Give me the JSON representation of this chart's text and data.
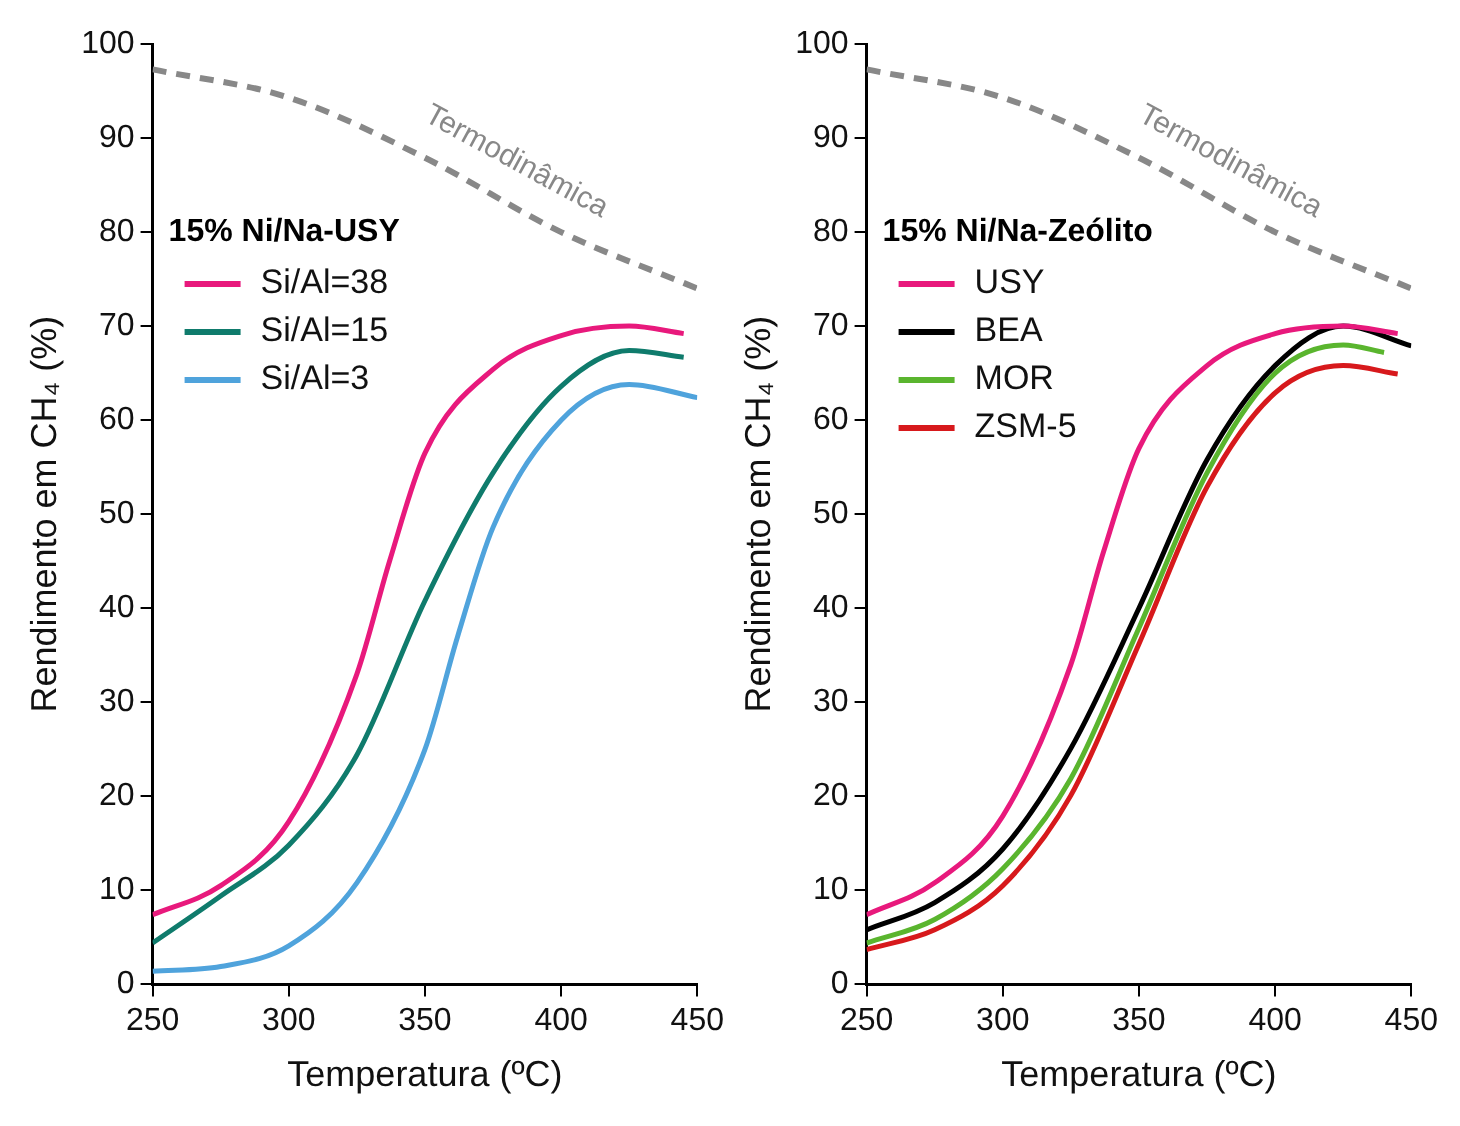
{
  "chart_data": [
    {
      "type": "line",
      "xlabel": "Temperatura (ºC)",
      "ylabel": "Rendimento em CH₄ (%)",
      "legend_title": "15% Ni/Na-USY",
      "legend": "top left",
      "grid": false,
      "xlim": [
        250,
        450
      ],
      "xticks": [
        250,
        300,
        350,
        400,
        450
      ],
      "ylim": [
        0,
        100
      ],
      "yticks": [
        0,
        10,
        20,
        30,
        40,
        50,
        60,
        70,
        80,
        90,
        100
      ],
      "series": [
        {
          "name": "Termodinâmica",
          "color": "#888888",
          "line_style": "dashed",
          "x": [
            250,
            300,
            350,
            400,
            450
          ],
          "values": [
            97.3,
            94.3,
            87.9,
            80,
            74
          ]
        },
        {
          "name": "Si/Al=38",
          "color": "#e8197c",
          "x": [
            250,
            275,
            300,
            325,
            337,
            350,
            375,
            400,
            425,
            445
          ],
          "values": [
            7.4,
            10.5,
            17.3,
            33,
            45,
            56.5,
            65.4,
            69,
            70,
            69.2
          ]
        },
        {
          "name": "Si/Al=15",
          "color": "#0f7b6c",
          "x": [
            250,
            275,
            300,
            325,
            350,
            375,
            400,
            425,
            445
          ],
          "values": [
            4.4,
            9.4,
            14.8,
            24.4,
            40.8,
            54.4,
            63.6,
            67.4,
            66.7
          ]
        },
        {
          "name": "Si/Al=3",
          "color": "#4fa3dc",
          "x": [
            250,
            275,
            300,
            325,
            350,
            362,
            375,
            400,
            425,
            450
          ],
          "values": [
            1.4,
            1.9,
            4.1,
            10.8,
            25,
            37,
            48.6,
            60,
            63.8,
            62.4
          ]
        }
      ]
    },
    {
      "type": "line",
      "xlabel": "Temperatura (ºC)",
      "ylabel": "Rendimento em CH₄ (%)",
      "legend_title": "15% Ni/Na-Zeólito",
      "legend": "top left",
      "grid": false,
      "xlim": [
        250,
        450
      ],
      "xticks": [
        250,
        300,
        350,
        400,
        450
      ],
      "ylim": [
        0,
        100
      ],
      "yticks": [
        0,
        10,
        20,
        30,
        40,
        50,
        60,
        70,
        80,
        90,
        100
      ],
      "series": [
        {
          "name": "Termodinâmica",
          "color": "#888888",
          "line_style": "dashed",
          "x": [
            250,
            300,
            350,
            400,
            450
          ],
          "values": [
            97.3,
            94.3,
            87.9,
            80,
            74
          ]
        },
        {
          "name": "USY",
          "color": "#e8197c",
          "x": [
            250,
            275,
            300,
            325,
            337,
            350,
            375,
            400,
            425,
            445
          ],
          "values": [
            7.4,
            10.8,
            17.9,
            34,
            46,
            57,
            65.8,
            69.2,
            70,
            69.2
          ]
        },
        {
          "name": "BEA",
          "color": "#000000",
          "x": [
            250,
            275,
            300,
            325,
            350,
            375,
            400,
            425,
            450
          ],
          "values": [
            5.8,
            8.7,
            14.4,
            25.1,
            40,
            55.8,
            65.8,
            70,
            67.9
          ]
        },
        {
          "name": "MOR",
          "color": "#5ab52e",
          "x": [
            250,
            275,
            300,
            325,
            350,
            375,
            400,
            425,
            440
          ],
          "values": [
            4.4,
            6.9,
            12.3,
            21.9,
            37.9,
            54.4,
            65,
            68,
            67.2
          ]
        },
        {
          "name": "ZSM-5",
          "color": "#d7191c",
          "x": [
            250,
            275,
            300,
            325,
            350,
            375,
            400,
            425,
            445
          ],
          "values": [
            3.7,
            5.8,
            10.5,
            20.1,
            36.2,
            52.9,
            62.9,
            65.8,
            64.9
          ]
        }
      ]
    }
  ]
}
